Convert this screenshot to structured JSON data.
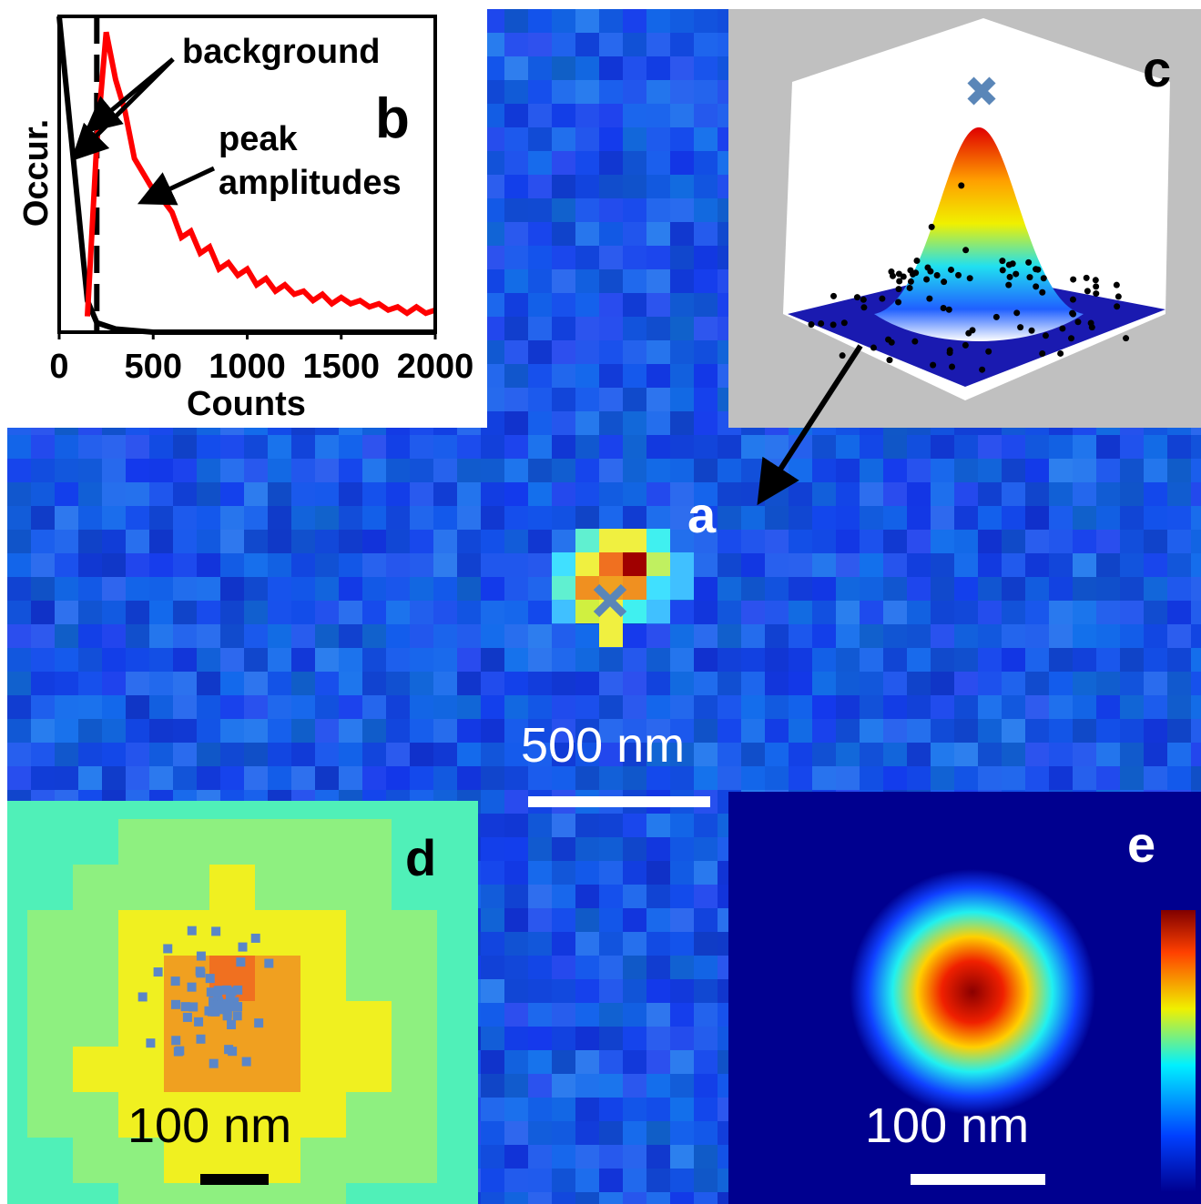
{
  "chart_data": {
    "type": "line",
    "xlabel": "Counts",
    "ylabel": "Occur.",
    "xlim": [
      0,
      2000
    ],
    "xticks": [
      0,
      500,
      1000,
      1500,
      2000
    ],
    "ylim": [
      0,
      100
    ],
    "series": [
      {
        "color": "#000000",
        "x": [
          0,
          50,
          100,
          150,
          200,
          300,
          500,
          1000,
          2000
        ],
        "values": [
          100,
          70,
          40,
          10,
          3,
          1,
          0,
          0,
          0
        ]
      },
      {
        "color": "#ff0000",
        "x": [
          150,
          200,
          250,
          300,
          350,
          400,
          450,
          500,
          550,
          600,
          650,
          700,
          750,
          800,
          850,
          900,
          950,
          1000,
          1050,
          1100,
          1150,
          1200,
          1250,
          1300,
          1350,
          1400,
          1450,
          1500,
          1550,
          1600,
          1650,
          1700,
          1750,
          1800,
          1850,
          1900,
          1950,
          2000
        ],
        "values": [
          5,
          60,
          95,
          80,
          70,
          55,
          50,
          45,
          42,
          38,
          30,
          32,
          25,
          27,
          20,
          22,
          18,
          20,
          15,
          17,
          13,
          15,
          12,
          13,
          10,
          12,
          9,
          11,
          9,
          10,
          8,
          9,
          7,
          8,
          6,
          8,
          6,
          7
        ]
      }
    ],
    "vlines": [
      200
    ],
    "annotations": [
      "background",
      "peak amplitudes"
    ]
  },
  "panel_labels": [
    "a",
    "b",
    "c",
    "d",
    "e"
  ],
  "scale_bars": {
    "a": "500 nm",
    "d": "100 nm",
    "e": "100 nm"
  }
}
